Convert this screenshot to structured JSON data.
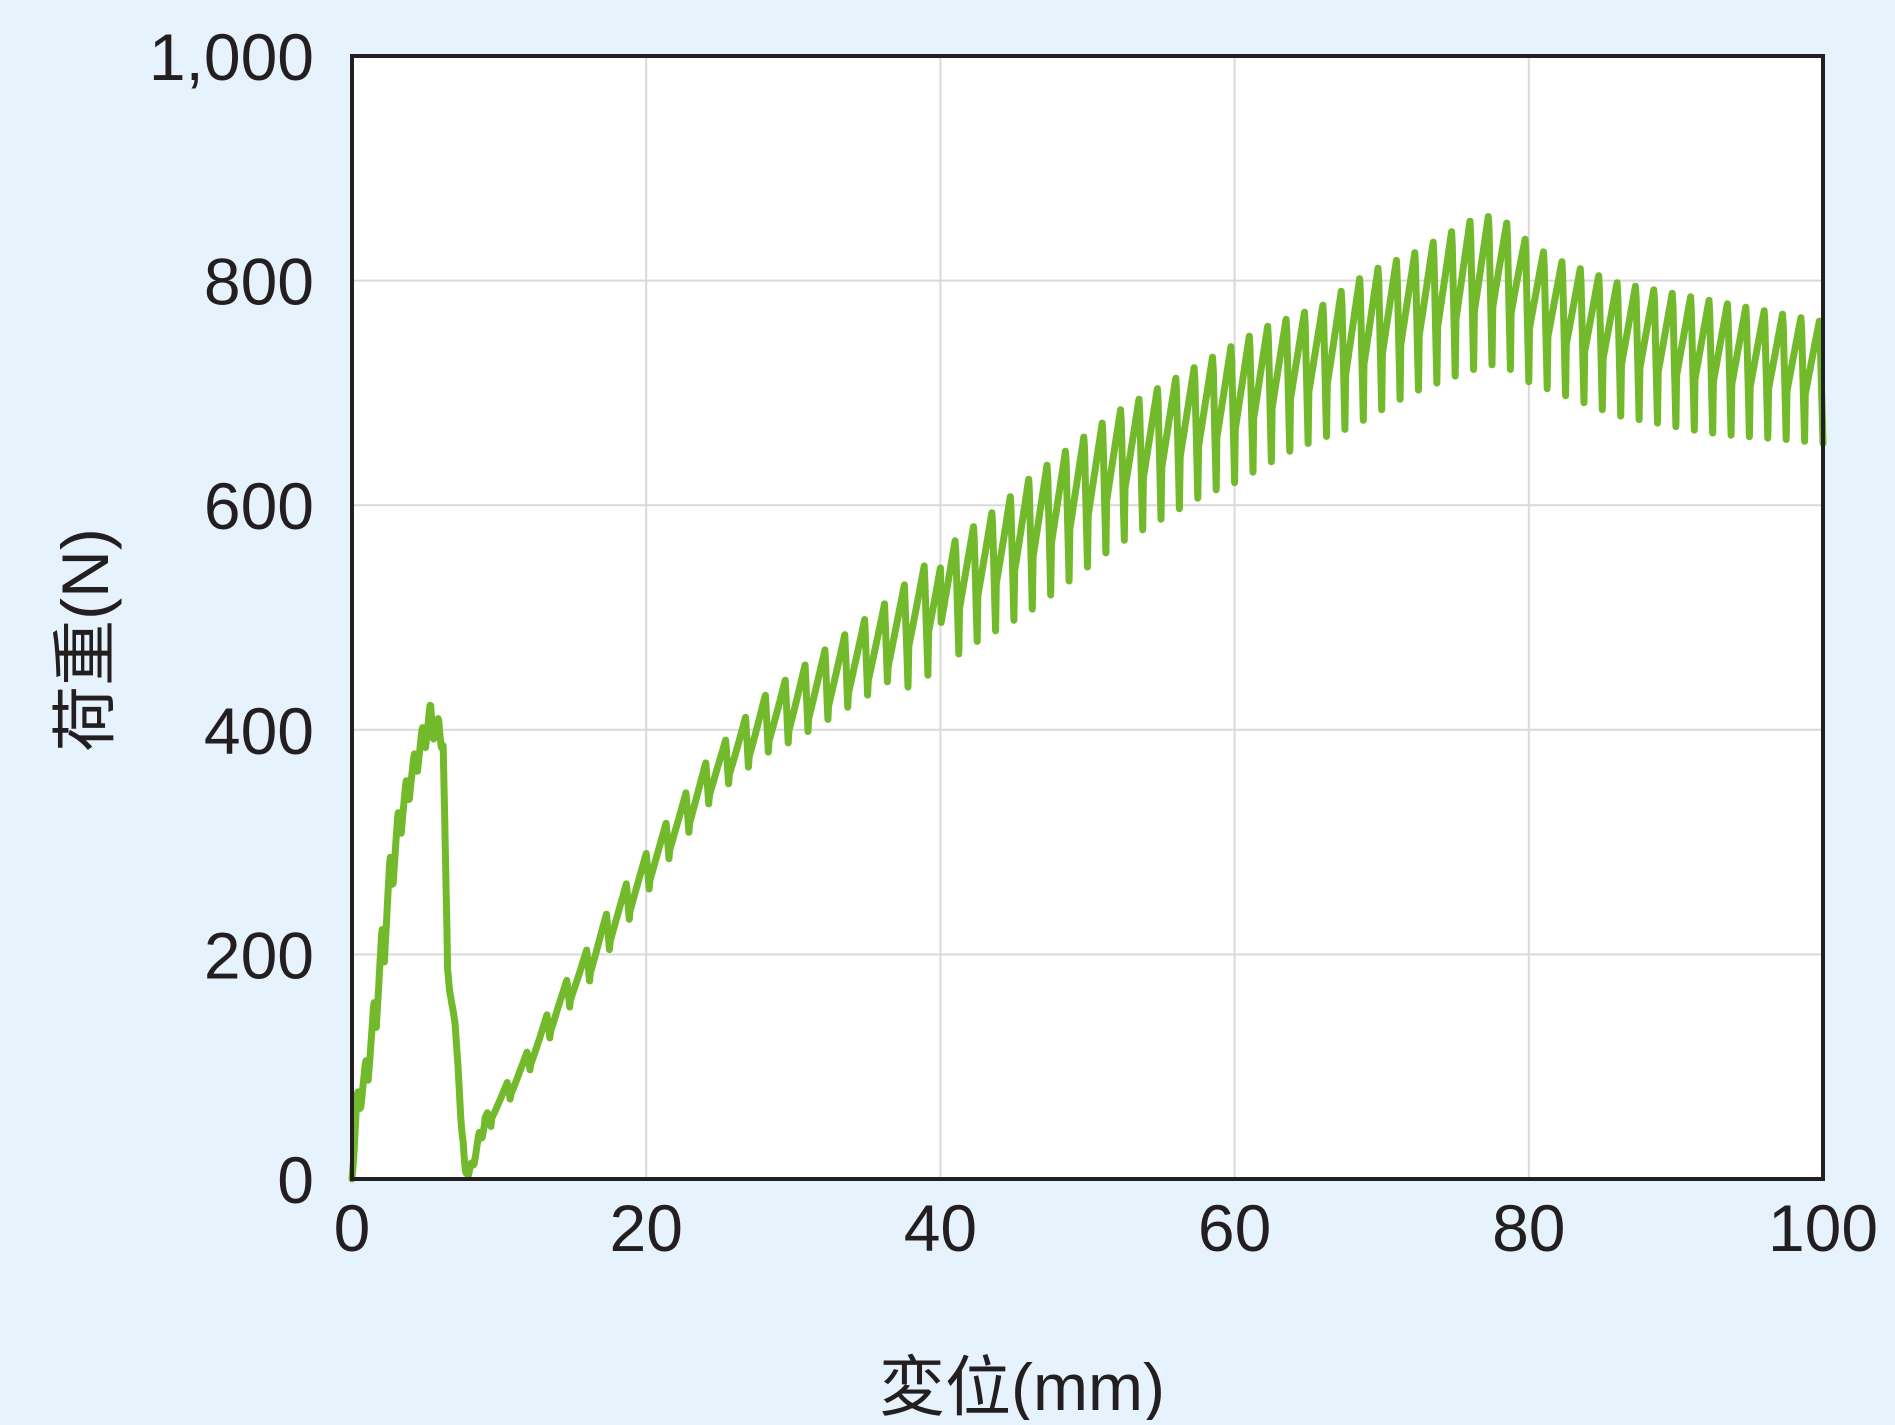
{
  "chart_data": {
    "type": "line",
    "title": "",
    "xlabel": "変位(mm)",
    "ylabel": "荷重(N)",
    "xlim": [
      0,
      100
    ],
    "ylim": [
      0,
      1000
    ],
    "x_ticks": [
      "0",
      "20",
      "40",
      "60",
      "80",
      "100"
    ],
    "y_ticks": [
      "0",
      "200",
      "400",
      "600",
      "800",
      "1,000"
    ],
    "grid": true,
    "legend": "none",
    "colors": {
      "line": "#72ba2c",
      "background": "#e7f3fc",
      "plot_bg": "#ffffff",
      "grid": "#d9d9d9",
      "frame": "#231f20"
    },
    "series": [
      {
        "x": [
          0.0,
          0.3,
          0.6,
          1.0,
          1.5,
          2.0,
          2.6,
          3.3,
          4.0,
          4.7,
          5.3,
          5.8,
          6.2,
          6.5,
          6.6,
          6.9,
          7.2,
          7.4,
          7.5,
          7.7,
          7.9,
          8.1,
          8.4,
          8.7,
          9.0,
          10.0,
          11.0,
          12.0,
          13.0,
          14.0,
          15.0,
          16.0,
          17.0,
          18.0,
          19.0,
          20.0,
          21.0,
          22.0,
          23.0,
          24.0,
          25.0,
          26.0,
          27.0,
          28.0,
          29.0,
          30.0,
          32.0,
          34.0,
          36.0,
          38.0,
          40.0,
          42.0,
          44.0,
          46.0,
          48.0,
          50.0,
          52.0,
          54.0,
          56.0,
          58.0,
          60.0,
          62.0,
          64.0,
          66.0,
          68.0,
          70.0,
          72.0,
          74.0,
          76.0,
          77.5,
          79.0,
          80.0,
          82.0,
          84.0,
          86.0,
          88.0,
          90.0,
          92.0,
          94.0,
          96.0,
          98.0,
          100.0
        ],
        "upper": [
          0,
          75,
          90,
          110,
          160,
          220,
          290,
          340,
          370,
          400,
          425,
          415,
          395,
          190,
          180,
          150,
          120,
          60,
          40,
          20,
          5,
          15,
          30,
          45,
          55,
          75,
          95,
          115,
          140,
          165,
          185,
          205,
          230,
          250,
          270,
          290,
          310,
          330,
          350,
          370,
          385,
          400,
          415,
          430,
          440,
          450,
          470,
          490,
          510,
          535,
          560,
          580,
          600,
          625,
          645,
          665,
          685,
          700,
          715,
          730,
          745,
          760,
          770,
          780,
          800,
          815,
          825,
          840,
          855,
          860,
          850,
          835,
          820,
          810,
          800,
          795,
          790,
          785,
          780,
          775,
          770,
          765
        ],
        "lower": [
          0,
          40,
          60,
          80,
          120,
          170,
          240,
          300,
          340,
          370,
          390,
          385,
          380,
          180,
          170,
          140,
          100,
          40,
          20,
          5,
          0,
          5,
          15,
          30,
          40,
          55,
          70,
          90,
          110,
          130,
          150,
          165,
          185,
          205,
          225,
          245,
          265,
          285,
          300,
          320,
          335,
          345,
          355,
          365,
          370,
          375,
          390,
          405,
          420,
          440,
          455,
          475,
          490,
          505,
          525,
          545,
          565,
          580,
          595,
          610,
          620,
          635,
          650,
          660,
          670,
          685,
          700,
          710,
          720,
          725,
          720,
          710,
          700,
          690,
          680,
          675,
          670,
          665,
          662,
          660,
          658,
          655
        ]
      }
    ]
  }
}
